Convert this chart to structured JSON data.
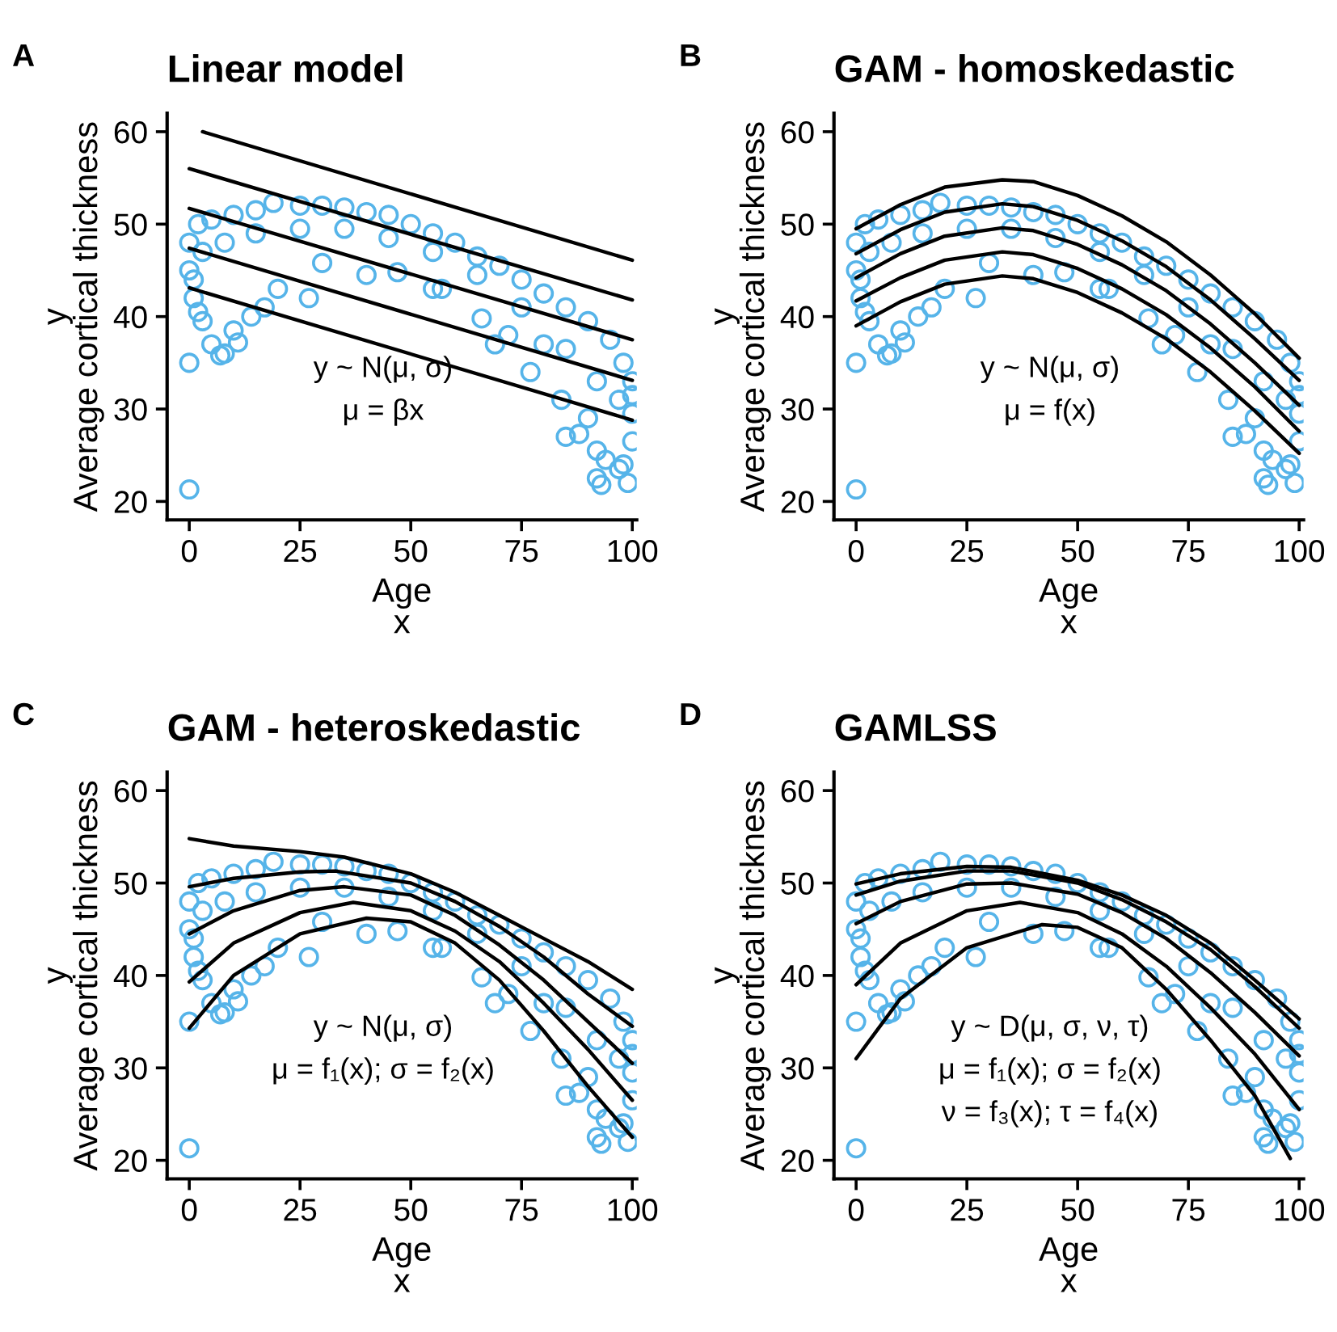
{
  "chart_data": [
    {
      "type": "scatter",
      "title": "Linear model",
      "xlabel": "Age\nx",
      "ylabel": "y\nAverage cortical thickness",
      "xlim": [
        -5,
        101
      ],
      "ylim": [
        18,
        62
      ],
      "xticks": [
        0,
        25,
        50,
        75,
        100
      ],
      "yticks": [
        20,
        30,
        40,
        50,
        60
      ],
      "grid": false,
      "annotations": [
        "A",
        "y ~ N(μ, σ)",
        "μ = βx"
      ],
      "series": [
        {
          "type": "scatter",
          "color": "#56b4e9",
          "x": [
            0,
            2,
            5,
            10,
            15,
            19,
            25,
            30,
            35,
            40,
            45,
            50,
            55,
            60,
            65,
            70,
            75,
            80,
            85,
            90,
            95,
            98,
            100,
            0,
            3,
            8,
            15,
            25,
            35,
            45,
            55,
            65,
            75,
            85,
            92,
            97,
            100,
            1,
            2,
            3,
            5,
            7,
            8,
            10,
            11,
            14,
            17,
            20,
            27,
            30,
            40,
            47,
            55,
            57,
            66,
            69,
            72,
            77,
            80,
            84,
            85,
            88,
            90,
            92,
            92,
            93,
            94,
            97,
            98,
            99,
            100,
            100,
            0,
            0,
            1
          ],
          "values": [
            48,
            50,
            50.5,
            51,
            51.5,
            52.3,
            52,
            52,
            51.8,
            51.3,
            51,
            50,
            49,
            48,
            46.5,
            45.5,
            44,
            42.5,
            41,
            39.5,
            37.5,
            35,
            33,
            45,
            47,
            48,
            49,
            49.5,
            49.5,
            48.5,
            47,
            44.5,
            41,
            36.5,
            33,
            31,
            31.5,
            44,
            40.5,
            39.5,
            37,
            35.8,
            36,
            38.5,
            37.2,
            40,
            41,
            43,
            42,
            45.8,
            44.5,
            44.8,
            43,
            43,
            39.8,
            37,
            38,
            34,
            37,
            31,
            27,
            27.3,
            29,
            25.5,
            22.5,
            21.8,
            24.5,
            23.5,
            24,
            22,
            26.5,
            29.5,
            35,
            21.3,
            42
          ]
        },
        {
          "type": "line",
          "color": "#000000",
          "x": [
            3,
            100
          ],
          "values": [
            60,
            46.1
          ]
        },
        {
          "type": "line",
          "color": "#000000",
          "x": [
            0,
            100
          ],
          "values": [
            56,
            41.8
          ]
        },
        {
          "type": "line",
          "color": "#000000",
          "x": [
            0,
            100
          ],
          "values": [
            51.7,
            37.5
          ]
        },
        {
          "type": "line",
          "color": "#000000",
          "x": [
            0,
            100
          ],
          "values": [
            47.4,
            33.1
          ]
        },
        {
          "type": "line",
          "color": "#000000",
          "x": [
            0,
            100
          ],
          "values": [
            43.1,
            28.8
          ]
        }
      ]
    },
    {
      "type": "scatter",
      "title": "GAM - homoskedastic",
      "xlabel": "Age\nx",
      "ylabel": "y\nAverage cortical thickness",
      "xlim": [
        -5,
        101
      ],
      "ylim": [
        18,
        62
      ],
      "xticks": [
        0,
        25,
        50,
        75,
        100
      ],
      "yticks": [
        20,
        30,
        40,
        50,
        60
      ],
      "grid": false,
      "annotations": [
        "B",
        "y ~ N(μ, σ)",
        "μ = f(x)"
      ],
      "series": [
        {
          "type": "scatter",
          "color": "#56b4e9",
          "x": [
            0,
            2,
            5,
            10,
            15,
            19,
            25,
            30,
            35,
            40,
            45,
            50,
            55,
            60,
            65,
            70,
            75,
            80,
            85,
            90,
            95,
            98,
            100,
            0,
            3,
            8,
            15,
            25,
            35,
            45,
            55,
            65,
            75,
            85,
            92,
            97,
            100,
            1,
            2,
            3,
            5,
            7,
            8,
            10,
            11,
            14,
            17,
            20,
            27,
            30,
            40,
            47,
            55,
            57,
            66,
            69,
            72,
            77,
            80,
            84,
            85,
            88,
            90,
            92,
            92,
            93,
            94,
            97,
            98,
            99,
            100,
            100,
            0,
            0,
            1
          ],
          "values": [
            48,
            50,
            50.5,
            51,
            51.5,
            52.3,
            52,
            52,
            51.8,
            51.3,
            51,
            50,
            49,
            48,
            46.5,
            45.5,
            44,
            42.5,
            41,
            39.5,
            37.5,
            35,
            33,
            45,
            47,
            48,
            49,
            49.5,
            49.5,
            48.5,
            47,
            44.5,
            41,
            36.5,
            33,
            31,
            31.5,
            44,
            40.5,
            39.5,
            37,
            35.8,
            36,
            38.5,
            37.2,
            40,
            41,
            43,
            42,
            45.8,
            44.5,
            44.8,
            43,
            43,
            39.8,
            37,
            38,
            34,
            37,
            31,
            27,
            27.3,
            29,
            25.5,
            22.5,
            21.8,
            24.5,
            23.5,
            24,
            22,
            26.5,
            29.5,
            35,
            21.3,
            42
          ]
        },
        {
          "type": "line",
          "color": "#000000",
          "x": [
            0,
            10,
            20,
            33,
            40,
            50,
            60,
            70,
            80,
            90,
            100
          ],
          "values": [
            49.5,
            52.1,
            54,
            54.8,
            54.6,
            53.1,
            50.9,
            48.1,
            44.5,
            40.3,
            35.5
          ]
        },
        {
          "type": "line",
          "color": "#000000",
          "x": [
            0,
            10,
            20,
            33,
            40,
            50,
            60,
            70,
            80,
            90,
            100
          ],
          "values": [
            46.8,
            49.4,
            51.3,
            52.2,
            51.9,
            50.4,
            48.2,
            45.4,
            41.8,
            37.6,
            33.1
          ]
        },
        {
          "type": "line",
          "color": "#000000",
          "x": [
            0,
            10,
            20,
            33,
            40,
            50,
            60,
            70,
            80,
            90,
            100
          ],
          "values": [
            44.2,
            46.8,
            48.7,
            49.6,
            49.3,
            47.8,
            45.6,
            42.8,
            39.2,
            35,
            30.4
          ]
        },
        {
          "type": "line",
          "color": "#000000",
          "x": [
            0,
            10,
            20,
            33,
            40,
            50,
            60,
            70,
            80,
            90,
            100
          ],
          "values": [
            41.7,
            44.2,
            46.1,
            47,
            46.7,
            45.2,
            43,
            40.2,
            36.6,
            32.4,
            27.6
          ]
        },
        {
          "type": "line",
          "color": "#000000",
          "x": [
            0,
            10,
            20,
            33,
            40,
            50,
            60,
            70,
            80,
            90,
            100
          ],
          "values": [
            39,
            41.6,
            43.5,
            44.4,
            44.1,
            42.6,
            40.4,
            37.6,
            34,
            29.8,
            25.2
          ]
        }
      ]
    },
    {
      "type": "scatter",
      "title": "GAM - heteroskedastic",
      "xlabel": "Age\nx",
      "ylabel": "y\nAverage cortical thickness",
      "xlim": [
        -5,
        101
      ],
      "ylim": [
        18,
        62
      ],
      "xticks": [
        0,
        25,
        50,
        75,
        100
      ],
      "yticks": [
        20,
        30,
        40,
        50,
        60
      ],
      "grid": false,
      "annotations": [
        "C",
        "y ~ N(μ, σ)",
        "μ = f₁(x); σ = f₂(x)"
      ],
      "series": [
        {
          "type": "scatter",
          "color": "#56b4e9",
          "x": [
            0,
            2,
            5,
            10,
            15,
            19,
            25,
            30,
            35,
            40,
            45,
            50,
            55,
            60,
            65,
            70,
            75,
            80,
            85,
            90,
            95,
            98,
            100,
            0,
            3,
            8,
            15,
            25,
            35,
            45,
            55,
            65,
            75,
            85,
            92,
            97,
            100,
            1,
            2,
            3,
            5,
            7,
            8,
            10,
            11,
            14,
            17,
            20,
            27,
            30,
            40,
            47,
            55,
            57,
            66,
            69,
            72,
            77,
            80,
            84,
            85,
            88,
            90,
            92,
            92,
            93,
            94,
            97,
            98,
            99,
            100,
            100,
            0,
            0,
            1
          ],
          "values": [
            48,
            50,
            50.5,
            51,
            51.5,
            52.3,
            52,
            52,
            51.8,
            51.3,
            51,
            50,
            49,
            48,
            46.5,
            45.5,
            44,
            42.5,
            41,
            39.5,
            37.5,
            35,
            33,
            45,
            47,
            48,
            49,
            49.5,
            49.5,
            48.5,
            47,
            44.5,
            41,
            36.5,
            33,
            31,
            31.5,
            44,
            40.5,
            39.5,
            37,
            35.8,
            36,
            38.5,
            37.2,
            40,
            41,
            43,
            42,
            45.8,
            44.5,
            44.8,
            43,
            43,
            39.8,
            37,
            38,
            34,
            37,
            31,
            27,
            27.3,
            29,
            25.5,
            22.5,
            21.8,
            24.5,
            23.5,
            24,
            22,
            26.5,
            29.5,
            35,
            21.3,
            42
          ]
        },
        {
          "type": "line",
          "color": "#000000",
          "x": [
            0,
            10,
            25,
            35,
            50,
            60,
            70,
            80,
            90,
            100
          ],
          "values": [
            54.8,
            54,
            53.4,
            52.8,
            51,
            49,
            46.5,
            44,
            41.5,
            38.5
          ]
        },
        {
          "type": "line",
          "color": "#000000",
          "x": [
            0,
            10,
            25,
            33,
            50,
            60,
            70,
            80,
            90,
            100
          ],
          "values": [
            49.6,
            50.5,
            51.2,
            51.3,
            50,
            48,
            45.3,
            42,
            38,
            34.5
          ]
        },
        {
          "type": "line",
          "color": "#000000",
          "x": [
            0,
            10,
            25,
            35,
            50,
            60,
            70,
            80,
            90,
            100
          ],
          "values": [
            44.5,
            47,
            49.2,
            49.6,
            48.7,
            46.5,
            43.3,
            39.5,
            35,
            30.5
          ]
        },
        {
          "type": "line",
          "color": "#000000",
          "x": [
            0,
            10,
            25,
            37,
            50,
            60,
            70,
            80,
            90,
            100
          ],
          "values": [
            39.3,
            43.5,
            46.8,
            47.9,
            47,
            44.8,
            41.5,
            37,
            32,
            26.5
          ]
        },
        {
          "type": "line",
          "color": "#000000",
          "x": [
            0,
            10,
            25,
            40,
            50,
            60,
            70,
            80,
            90,
            100
          ],
          "values": [
            34.3,
            40,
            44.5,
            46.2,
            45.8,
            43.5,
            39.5,
            34,
            28,
            22.5
          ]
        }
      ]
    },
    {
      "type": "scatter",
      "title": "GAMLSS",
      "xlabel": "Age\nx",
      "ylabel": "y\nAverage cortical thickness",
      "xlim": [
        -5,
        101
      ],
      "ylim": [
        18,
        62
      ],
      "xticks": [
        0,
        25,
        50,
        75,
        100
      ],
      "yticks": [
        20,
        30,
        40,
        50,
        60
      ],
      "grid": false,
      "annotations": [
        "D",
        "y ~ D(μ, σ, ν, τ)",
        "μ = f₁(x); σ = f₂(x)",
        "ν = f₃(x); τ = f₄(x)"
      ],
      "series": [
        {
          "type": "scatter",
          "color": "#56b4e9",
          "x": [
            0,
            2,
            5,
            10,
            15,
            19,
            25,
            30,
            35,
            40,
            45,
            50,
            55,
            60,
            65,
            70,
            75,
            80,
            85,
            90,
            95,
            98,
            100,
            0,
            3,
            8,
            15,
            25,
            35,
            45,
            55,
            65,
            75,
            85,
            92,
            97,
            100,
            1,
            2,
            3,
            5,
            7,
            8,
            10,
            11,
            14,
            17,
            20,
            27,
            30,
            40,
            47,
            55,
            57,
            66,
            69,
            72,
            77,
            80,
            84,
            85,
            88,
            90,
            92,
            92,
            93,
            94,
            97,
            98,
            99,
            100,
            100,
            0,
            0,
            1
          ],
          "values": [
            48,
            50,
            50.5,
            51,
            51.5,
            52.3,
            52,
            52,
            51.8,
            51.3,
            51,
            50,
            49,
            48,
            46.5,
            45.5,
            44,
            42.5,
            41,
            39.5,
            37.5,
            35,
            33,
            45,
            47,
            48,
            49,
            49.5,
            49.5,
            48.5,
            47,
            44.5,
            41,
            36.5,
            33,
            31,
            31.5,
            44,
            40.5,
            39.5,
            37,
            35.8,
            36,
            38.5,
            37.2,
            40,
            41,
            43,
            42,
            45.8,
            44.5,
            44.8,
            43,
            43,
            39.8,
            37,
            38,
            34,
            37,
            31,
            27,
            27.3,
            29,
            25.5,
            22.5,
            21.8,
            24.5,
            23.5,
            24,
            22,
            26.5,
            29.5,
            35,
            21.3,
            42
          ]
        },
        {
          "type": "line",
          "color": "#000000",
          "x": [
            0,
            10,
            25,
            35,
            50,
            60,
            70,
            80,
            90,
            100
          ],
          "values": [
            49.9,
            51,
            51.8,
            51.7,
            50.3,
            48.7,
            46.5,
            43.5,
            39.5,
            35.3
          ]
        },
        {
          "type": "line",
          "color": "#000000",
          "x": [
            0,
            10,
            25,
            35,
            50,
            60,
            70,
            80,
            90,
            100
          ],
          "values": [
            48.7,
            50.2,
            51.3,
            51.3,
            50,
            48.2,
            45.8,
            42.8,
            38.8,
            34.3
          ]
        },
        {
          "type": "line",
          "color": "#000000",
          "x": [
            0,
            10,
            25,
            35,
            50,
            60,
            70,
            80,
            90,
            100
          ],
          "values": [
            45.6,
            48,
            49.9,
            50,
            48.8,
            46.8,
            44,
            40.3,
            36,
            31.3
          ]
        },
        {
          "type": "line",
          "color": "#000000",
          "x": [
            0,
            10,
            25,
            37,
            50,
            60,
            70,
            80,
            90,
            100
          ],
          "values": [
            39,
            43.5,
            47,
            47.9,
            46.8,
            44.5,
            41,
            36.5,
            31.5,
            25.5
          ]
        },
        {
          "type": "line",
          "color": "#000000",
          "x": [
            0,
            10,
            25,
            42,
            50,
            60,
            70,
            80,
            90,
            98
          ],
          "values": [
            31,
            37.5,
            43,
            45.5,
            45.2,
            43,
            38.5,
            33,
            27,
            20.2
          ]
        }
      ]
    }
  ]
}
